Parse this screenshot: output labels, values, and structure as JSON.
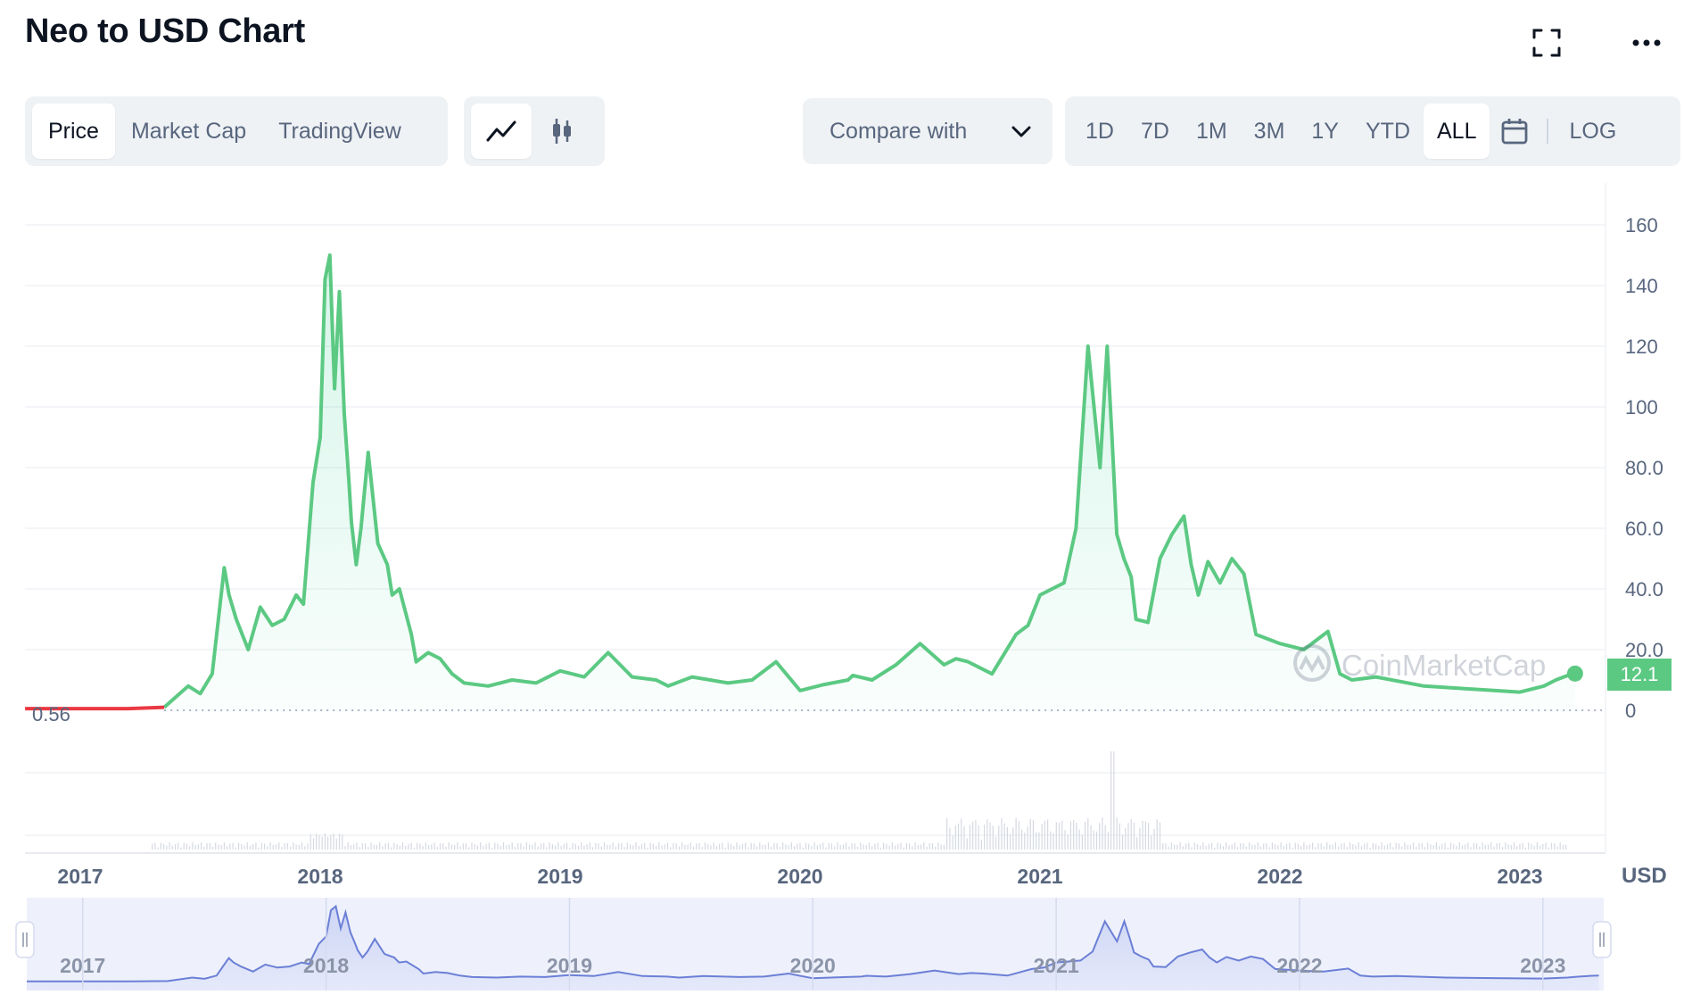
{
  "header": {
    "title": "Neo to USD Chart",
    "fullscreen_icon": "fullscreen-icon",
    "more_icon": "more-icon"
  },
  "view_tabs": [
    "Price",
    "Market Cap",
    "TradingView"
  ],
  "chart_style_icons": [
    "line-chart-icon",
    "candlestick-icon"
  ],
  "compare": {
    "label": "Compare with",
    "icon": "chevron-down-icon"
  },
  "ranges": [
    "1D",
    "7D",
    "1M",
    "3M",
    "1Y",
    "YTD",
    "ALL"
  ],
  "range_active": "ALL",
  "calendar_icon": "calendar-icon",
  "scale_label": "LOG",
  "watermark": "CoinMarketCap",
  "colors": {
    "line": "#16c784",
    "line_stroke": "#5cc983",
    "start_line": "#ea3943",
    "navigator": "#6b7fd6",
    "badge": "#16c784"
  },
  "chart_data": {
    "type": "area",
    "currency_label": "USD",
    "y_ticks": [
      "160",
      "140",
      "120",
      "100",
      "80.0",
      "60.0",
      "40.0",
      "20.0",
      "0"
    ],
    "ylim": [
      0,
      160
    ],
    "grid": true,
    "start_price_label": "0.56",
    "current_price_label": "12.1",
    "x_ticks": [
      "2017",
      "2018",
      "2019",
      "2020",
      "2021",
      "2022",
      "2023"
    ],
    "xlim": [
      2016.77,
      2023.25
    ],
    "series": [
      {
        "x": [
          2016.77,
          2017.0,
          2017.2,
          2017.35,
          2017.45,
          2017.5,
          2017.55,
          2017.6,
          2017.62,
          2017.65,
          2017.7,
          2017.75,
          2017.8,
          2017.85,
          2017.9,
          2017.93,
          2017.97,
          2018.0,
          2018.02,
          2018.04,
          2018.05,
          2018.06,
          2018.08,
          2018.1,
          2018.12,
          2018.13,
          2018.15,
          2018.17,
          2018.2,
          2018.24,
          2018.28,
          2018.3,
          2018.33,
          2018.38,
          2018.4,
          2018.45,
          2018.5,
          2018.55,
          2018.6,
          2018.7,
          2018.8,
          2018.9,
          2019.0,
          2019.1,
          2019.2,
          2019.3,
          2019.4,
          2019.45,
          2019.55,
          2019.7,
          2019.8,
          2019.9,
          2020.0,
          2020.1,
          2020.2,
          2020.22,
          2020.3,
          2020.4,
          2020.5,
          2020.6,
          2020.65,
          2020.7,
          2020.8,
          2020.9,
          2020.95,
          2021.0,
          2021.05,
          2021.1,
          2021.15,
          2021.2,
          2021.25,
          2021.28,
          2021.3,
          2021.32,
          2021.35,
          2021.38,
          2021.4,
          2021.45,
          2021.5,
          2021.55,
          2021.6,
          2021.63,
          2021.66,
          2021.7,
          2021.75,
          2021.8,
          2021.85,
          2021.9,
          2022.0,
          2022.1,
          2022.2,
          2022.25,
          2022.3,
          2022.4,
          2022.6,
          2022.8,
          2023.0,
          2023.1,
          2023.15,
          2023.2,
          2023.23
        ],
        "y": [
          0.56,
          0.56,
          0.56,
          1.0,
          8.0,
          5.5,
          12.0,
          47.0,
          38.0,
          30.0,
          20.0,
          34.0,
          28.0,
          30.0,
          38.0,
          35.0,
          75.0,
          90.0,
          142.0,
          150.0,
          128.0,
          106.0,
          138.0,
          98.0,
          75.0,
          62.0,
          48.0,
          60.0,
          85.0,
          55.0,
          48.0,
          38.0,
          40.0,
          25.0,
          16.0,
          19.0,
          17.0,
          12.0,
          9.0,
          8.0,
          10.0,
          9.0,
          13.0,
          11.0,
          19.0,
          11.0,
          10.0,
          8.0,
          11.0,
          9.0,
          10.0,
          16.0,
          6.5,
          8.5,
          10.0,
          11.5,
          10.0,
          15.0,
          22.0,
          15.0,
          17.0,
          16.0,
          12.0,
          25.0,
          28.0,
          38.0,
          40.0,
          42.0,
          60.0,
          120.0,
          80.0,
          120.0,
          90.0,
          58.0,
          50.0,
          44.0,
          30.0,
          29.0,
          50.0,
          58.0,
          64.0,
          48.0,
          38.0,
          49.0,
          42.0,
          50.0,
          45.0,
          25.0,
          22.0,
          20.0,
          26.0,
          12.0,
          10.0,
          11.0,
          8.0,
          7.0,
          6.0,
          8.0,
          10.0,
          11.5,
          12.1
        ]
      }
    ],
    "volume_spike_year": 2021.3,
    "navigator": {
      "x_ticks": [
        "2017",
        "2018",
        "2019",
        "2020",
        "2021",
        "2022",
        "2023"
      ]
    }
  }
}
